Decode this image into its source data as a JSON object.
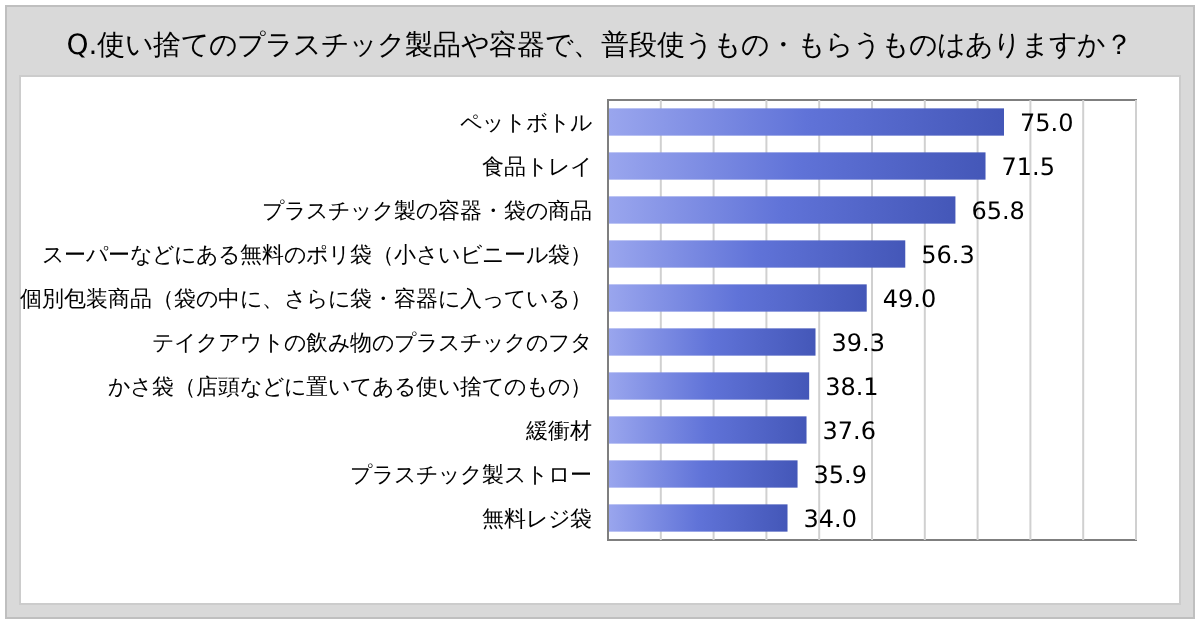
{
  "chart_data": {
    "type": "bar",
    "orientation": "horizontal",
    "title": "Q.使い捨てのプラスチック製品や容器で、普段使うもの・もらうものはありますか？",
    "categories": [
      "ペットボトル",
      "食品トレイ",
      "プラスチック製の容器・袋の商品",
      "スーパーなどにある無料のポリ袋（小さいビニール袋）",
      "個別包装商品（袋の中に、さらに袋・容器に入っている）",
      "テイクアウトの飲み物のプラスチックのフタ",
      "かさ袋（店頭などに置いてある使い捨てのもの）",
      "緩衝材",
      "プラスチック製ストロー",
      "無料レジ袋"
    ],
    "values": [
      75.0,
      71.5,
      65.8,
      56.3,
      49.0,
      39.3,
      38.1,
      37.6,
      35.9,
      34.0
    ],
    "value_labels": [
      "75.0",
      "71.5",
      "65.8",
      "56.3",
      "49.0",
      "39.3",
      "38.1",
      "37.6",
      "35.9",
      "34.0"
    ],
    "color": "#6073d8",
    "xlim": [
      0,
      100
    ],
    "xticks": [
      {
        "value": 0,
        "label": null
      },
      {
        "value": 10,
        "label": null
      },
      {
        "value": 20,
        "label": null
      },
      {
        "value": 30,
        "label": null
      },
      {
        "value": 40,
        "label": null
      },
      {
        "value": 50,
        "label": null
      },
      {
        "value": 60,
        "label": null
      },
      {
        "value": 70,
        "label": null
      },
      {
        "value": 80,
        "label": null
      },
      {
        "value": 90,
        "label": null
      },
      {
        "value": 100,
        "label": null
      }
    ],
    "tick_labels": "y",
    "grid": "x"
  }
}
